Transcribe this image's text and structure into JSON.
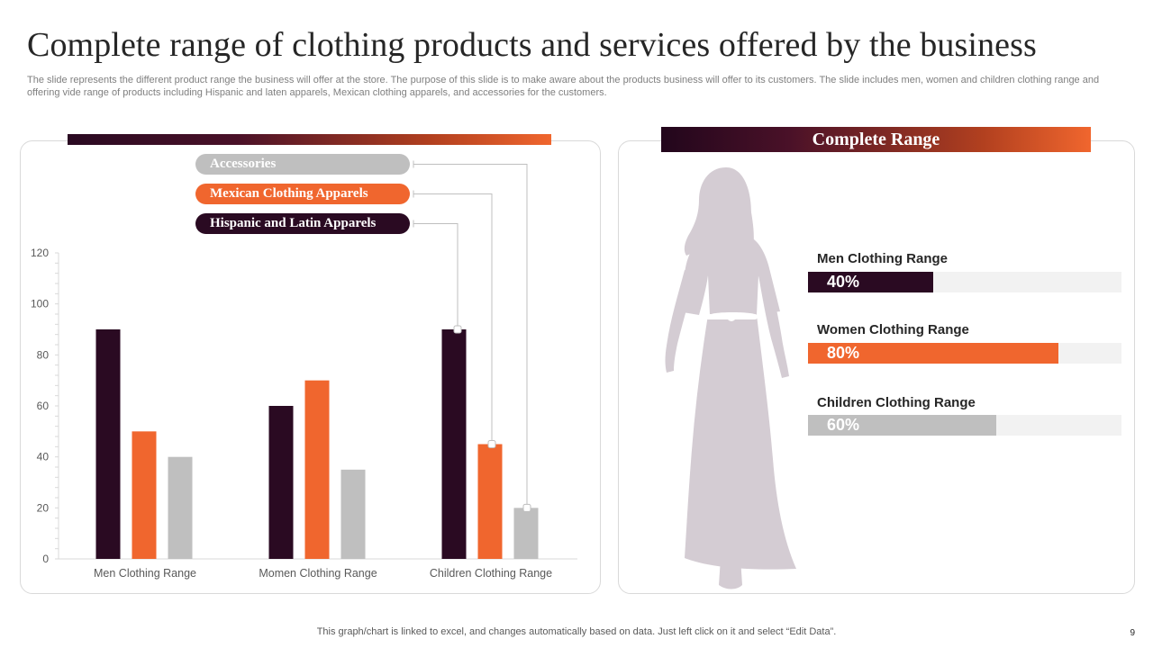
{
  "title": "Complete range of clothing products and services offered by the business",
  "subtitle": "The slide represents the different product range the business will offer at the store. The purpose of this slide is to make aware about the products business will offer to its customers. The slide includes men, women and children clothing range and offering vide range of products including Hispanic and laten apparels, Mexican clothing apparels, and accessories for the customers.",
  "right_panel": {
    "header": "Complete Range",
    "silhouette_icon": "woman-silhouette-icon",
    "items": [
      {
        "label": "Men Clothing Range",
        "value_text": "40%",
        "value": 0.4,
        "color": "#2a0a22"
      },
      {
        "label": "Women  Clothing Range",
        "value_text": "80%",
        "value": 0.8,
        "color": "#f0662e"
      },
      {
        "label": "Children Clothing Range",
        "value_text": "60%",
        "value": 0.6,
        "color": "#bfbfbf"
      }
    ]
  },
  "chart_data": {
    "type": "bar",
    "categories": [
      "Men Clothing Range",
      "Momen Clothing Range",
      "Children Clothing Range"
    ],
    "series": [
      {
        "name": "Hispanic and Latin Apparels",
        "values": [
          90,
          60,
          90
        ],
        "color": "#2a0a22"
      },
      {
        "name": "Mexican Clothing Apparels",
        "values": [
          50,
          70,
          45
        ],
        "color": "#f0662e"
      },
      {
        "name": "Accessories",
        "values": [
          40,
          35,
          20
        ],
        "color": "#bfbfbf"
      }
    ],
    "ylim": [
      0,
      120
    ],
    "yticks": [
      0,
      20,
      40,
      60,
      80,
      100,
      120
    ],
    "legend_placement": "top, callout labels linked to the Children Clothing Range bars",
    "grid": false
  },
  "footer": "This graph/chart is linked to excel,  and changes automatically based on data. Just left click on it and select “Edit Data”.",
  "page_number": "9"
}
